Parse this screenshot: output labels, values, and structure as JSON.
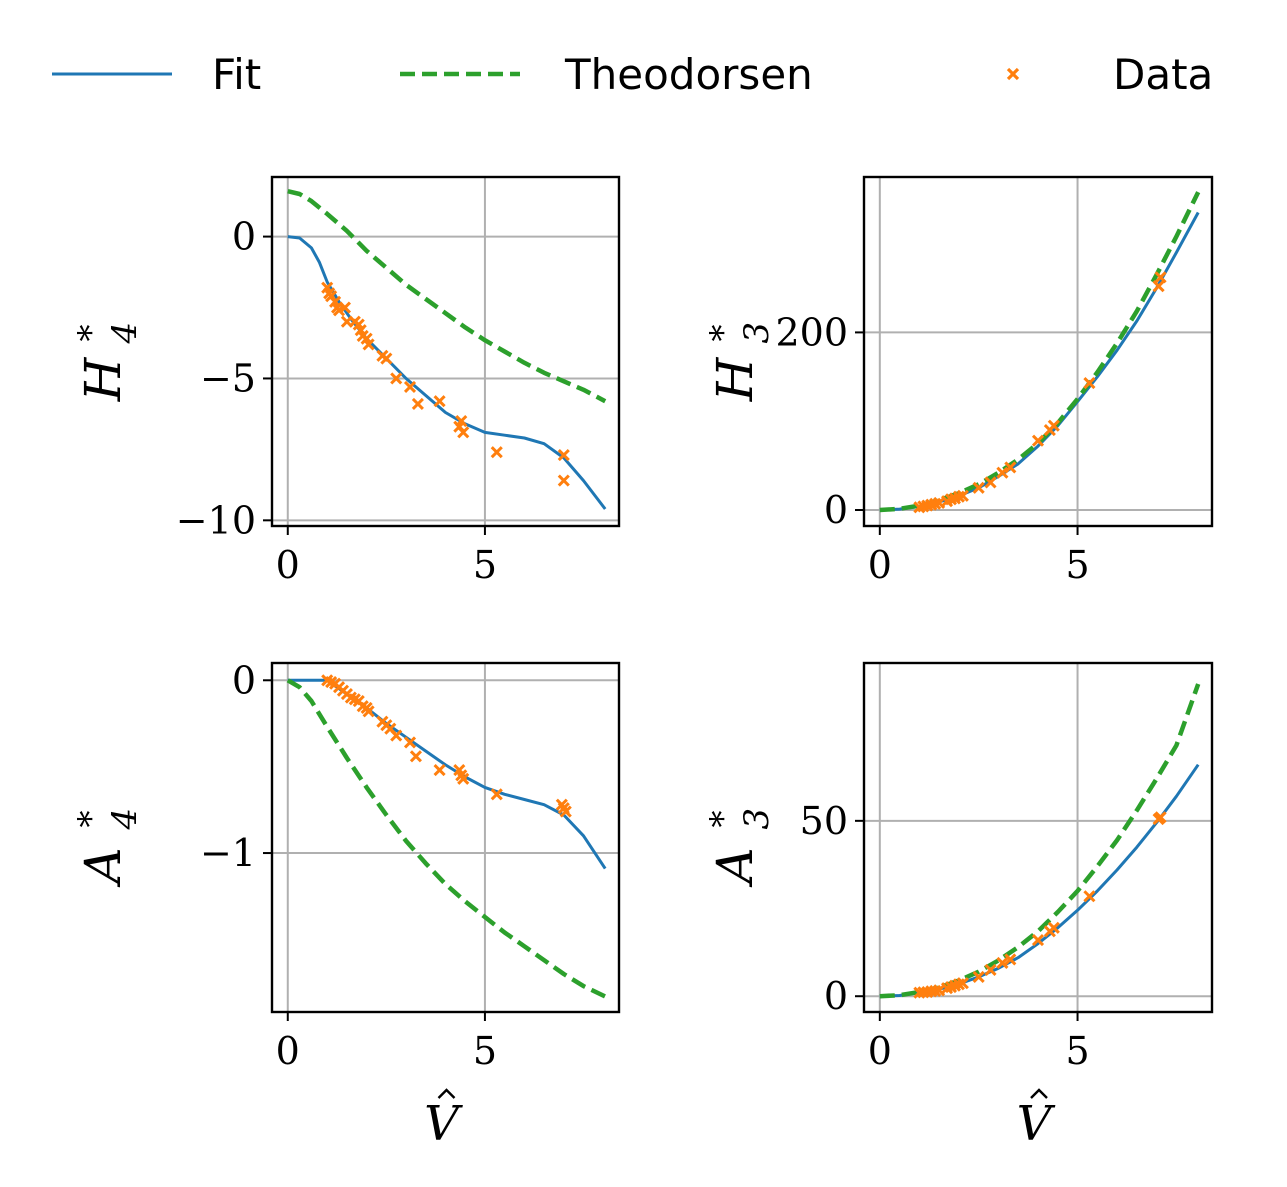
{
  "legend": {
    "entries": [
      {
        "label": "Fit",
        "color": "#1f77b4",
        "style": "solid"
      },
      {
        "label": "Theodorsen",
        "color": "#2ca02c",
        "style": "dashed"
      },
      {
        "label": "Data",
        "color": "#ff7f0e",
        "style": "marker-x"
      }
    ],
    "placement": "top"
  },
  "chart_data": [
    {
      "type": "line",
      "ylabel": "H",
      "ylabel_sup": "*",
      "ylabel_sub": "4",
      "xlabel": "",
      "xlim": [
        -0.4,
        8.4
      ],
      "ylim": [
        -10.2,
        2.1
      ],
      "xticks": [
        {
          "v": 0,
          "t": "0"
        },
        {
          "v": 5,
          "t": "5"
        }
      ],
      "yticks": [
        {
          "v": 0,
          "t": "0"
        },
        {
          "v": -5,
          "t": "−5"
        },
        {
          "v": -10,
          "t": "−10"
        }
      ],
      "grid": true,
      "series": [
        {
          "name": "Fit",
          "x": [
            0,
            0.3,
            0.6,
            0.8,
            1,
            1.3,
            1.6,
            2,
            2.5,
            3,
            3.5,
            4,
            4.5,
            5,
            5.5,
            6,
            6.5,
            7,
            7.5,
            8.05
          ],
          "y": [
            0,
            -0.05,
            -0.4,
            -0.9,
            -1.6,
            -2.3,
            -2.9,
            -3.6,
            -4.3,
            -5.0,
            -5.6,
            -6.2,
            -6.6,
            -6.9,
            -7.0,
            -7.1,
            -7.3,
            -7.8,
            -8.6,
            -9.6
          ]
        },
        {
          "name": "Theodorsen",
          "x": [
            0,
            0.3,
            0.6,
            1,
            1.5,
            2,
            2.5,
            3,
            3.5,
            4,
            4.5,
            5,
            5.5,
            6,
            6.5,
            7,
            7.5,
            8.05
          ],
          "y": [
            1.6,
            1.5,
            1.25,
            0.8,
            0.2,
            -0.5,
            -1.1,
            -1.7,
            -2.2,
            -2.7,
            -3.2,
            -3.65,
            -4.05,
            -4.45,
            -4.8,
            -5.1,
            -5.4,
            -5.8
          ]
        },
        {
          "name": "Data",
          "x": [
            1.0,
            1.05,
            1.1,
            1.2,
            1.25,
            1.3,
            1.45,
            1.5,
            1.7,
            1.8,
            1.85,
            1.9,
            2.0,
            2.05,
            2.4,
            2.5,
            2.75,
            3.1,
            3.3,
            3.85,
            4.35,
            4.4,
            4.45,
            5.3,
            7.0,
            7.0
          ],
          "y": [
            -1.8,
            -2.0,
            -2.1,
            -2.3,
            -2.5,
            -2.6,
            -2.5,
            -3.0,
            -3.0,
            -3.1,
            -3.3,
            -3.5,
            -3.6,
            -3.8,
            -4.2,
            -4.3,
            -5.0,
            -5.3,
            -5.9,
            -5.8,
            -6.7,
            -6.5,
            -6.9,
            -7.6,
            -7.7,
            -8.6
          ]
        }
      ]
    },
    {
      "type": "line",
      "ylabel": "H",
      "ylabel_sup": "*",
      "ylabel_sub": "3",
      "xlabel": "",
      "xlim": [
        -0.4,
        8.4
      ],
      "ylim": [
        -18,
        375
      ],
      "xticks": [
        {
          "v": 0,
          "t": "0"
        },
        {
          "v": 5,
          "t": "5"
        }
      ],
      "yticks": [
        {
          "v": 0,
          "t": "0"
        },
        {
          "v": 200,
          "t": "200"
        }
      ],
      "grid": true,
      "series": [
        {
          "name": "Fit",
          "x": [
            0,
            0.5,
            1,
            1.5,
            2,
            2.5,
            3,
            3.5,
            4,
            4.5,
            5,
            5.5,
            6,
            6.5,
            7,
            7.5,
            8.05
          ],
          "y": [
            0,
            1,
            4,
            9,
            16,
            25,
            38,
            52,
            72,
            95,
            122,
            150,
            180,
            213,
            250,
            290,
            335
          ]
        },
        {
          "name": "Theodorsen",
          "x": [
            0,
            0.5,
            1,
            1.5,
            2,
            2.5,
            3,
            3.5,
            4,
            4.5,
            5,
            5.5,
            6,
            6.5,
            7,
            7.5,
            8.05
          ],
          "y": [
            0,
            1.4,
            5,
            11,
            19,
            29,
            42,
            57,
            75,
            98,
            125,
            155,
            188,
            224,
            265,
            308,
            358
          ]
        },
        {
          "name": "Data",
          "x": [
            1.0,
            1.1,
            1.2,
            1.3,
            1.4,
            1.5,
            1.7,
            1.8,
            1.9,
            2.0,
            2.1,
            2.5,
            2.8,
            3.1,
            3.3,
            4.0,
            4.3,
            4.4,
            5.3,
            7.05,
            7.1
          ],
          "y": [
            3,
            4,
            5,
            6,
            7,
            8,
            10,
            12,
            13,
            15,
            16,
            25,
            31,
            42,
            48,
            78,
            90,
            95,
            143,
            252,
            262
          ]
        }
      ]
    },
    {
      "type": "line",
      "ylabel": "A",
      "ylabel_sup": "*",
      "ylabel_sub": "4",
      "xlabel": "V",
      "xlim": [
        -0.4,
        8.4
      ],
      "ylim": [
        -1.92,
        0.1
      ],
      "xticks": [
        {
          "v": 0,
          "t": "0"
        },
        {
          "v": 5,
          "t": "5"
        }
      ],
      "yticks": [
        {
          "v": 0,
          "t": "0"
        },
        {
          "v": -1,
          "t": "−1"
        }
      ],
      "grid": true,
      "series": [
        {
          "name": "Fit",
          "x": [
            0,
            0.5,
            1,
            1.5,
            2,
            2.5,
            3,
            3.5,
            4,
            4.5,
            5,
            5.5,
            6,
            6.5,
            7,
            7.5,
            8.05
          ],
          "y": [
            0,
            0,
            0,
            -0.08,
            -0.16,
            -0.25,
            -0.33,
            -0.41,
            -0.49,
            -0.56,
            -0.62,
            -0.66,
            -0.69,
            -0.72,
            -0.78,
            -0.9,
            -1.09
          ]
        },
        {
          "name": "Theodorsen",
          "x": [
            0,
            0.3,
            0.6,
            1,
            1.5,
            2,
            2.5,
            3,
            3.5,
            4,
            4.5,
            5,
            5.5,
            6,
            6.5,
            7,
            7.5,
            8.05
          ],
          "y": [
            0,
            -0.04,
            -0.12,
            -0.27,
            -0.45,
            -0.62,
            -0.78,
            -0.93,
            -1.06,
            -1.18,
            -1.28,
            -1.37,
            -1.46,
            -1.54,
            -1.62,
            -1.7,
            -1.77,
            -1.83
          ]
        },
        {
          "name": "Data",
          "x": [
            1.0,
            1.1,
            1.2,
            1.3,
            1.4,
            1.5,
            1.6,
            1.7,
            1.8,
            1.9,
            2.0,
            2.05,
            2.4,
            2.5,
            2.6,
            2.75,
            3.1,
            3.25,
            3.85,
            4.35,
            4.4,
            4.45,
            5.3,
            6.95,
            7.0,
            7.05
          ],
          "y": [
            0.0,
            -0.01,
            -0.02,
            -0.04,
            -0.06,
            -0.08,
            -0.1,
            -0.11,
            -0.12,
            -0.15,
            -0.16,
            -0.18,
            -0.24,
            -0.26,
            -0.28,
            -0.32,
            -0.36,
            -0.44,
            -0.52,
            -0.52,
            -0.55,
            -0.57,
            -0.66,
            -0.72,
            -0.74,
            -0.76
          ]
        }
      ]
    },
    {
      "type": "line",
      "ylabel": "A",
      "ylabel_sup": "*",
      "ylabel_sub": "3",
      "xlabel": "V",
      "xlim": [
        -0.4,
        8.4
      ],
      "ylim": [
        -4.5,
        95
      ],
      "xticks": [
        {
          "v": 0,
          "t": "0"
        },
        {
          "v": 5,
          "t": "5"
        }
      ],
      "yticks": [
        {
          "v": 0,
          "t": "0"
        },
        {
          "v": 50,
          "t": "50"
        }
      ],
      "grid": true,
      "series": [
        {
          "name": "Fit",
          "x": [
            0,
            0.5,
            1,
            1.5,
            2,
            2.5,
            3,
            3.5,
            4,
            4.5,
            5,
            5.5,
            6,
            6.5,
            7,
            7.5,
            8.05
          ],
          "y": [
            0,
            0.2,
            1,
            2,
            3.5,
            5.5,
            8,
            11,
            15,
            19.5,
            24.5,
            30,
            36,
            42.5,
            49.5,
            57,
            66
          ]
        },
        {
          "name": "Theodorsen",
          "x": [
            0,
            0.5,
            1,
            1.5,
            2,
            2.5,
            3,
            3.5,
            4,
            4.5,
            5,
            5.5,
            6,
            6.5,
            7,
            7.5,
            8.05
          ],
          "y": [
            0,
            0.3,
            1.2,
            2.5,
            4.5,
            7,
            10.2,
            14,
            18.5,
            24,
            30,
            37,
            44.5,
            53,
            62,
            71.5,
            89
          ]
        },
        {
          "name": "Data",
          "x": [
            1.0,
            1.1,
            1.2,
            1.3,
            1.4,
            1.5,
            1.7,
            1.8,
            1.9,
            2.0,
            2.1,
            2.5,
            2.8,
            3.1,
            3.3,
            4.0,
            4.3,
            4.4,
            5.3,
            7.05,
            7.1
          ],
          "y": [
            1,
            1.1,
            1.2,
            1.4,
            1.5,
            1.7,
            2.3,
            2.6,
            3.0,
            3.4,
            3.7,
            5.5,
            7.5,
            9.5,
            10.5,
            16,
            18.5,
            19.5,
            28.5,
            50.5,
            51
          ]
        }
      ]
    }
  ]
}
